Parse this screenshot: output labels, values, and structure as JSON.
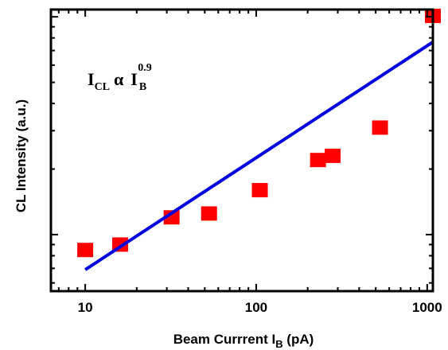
{
  "chart_data": {
    "type": "scatter",
    "xscale": "log",
    "yscale": "log",
    "xlim": [
      6.3,
      1080
    ],
    "ylim": [
      0.55,
      10.8
    ],
    "x_ticks": [
      10,
      100,
      1000
    ],
    "x_tick_labels": [
      "10",
      "100",
      "1000"
    ],
    "xlabel_main": "Beam Currrent I",
    "xlabel_sub": "B",
    "xlabel_tail": " (pA)",
    "ylabel": "CL Intensity (a.u.)",
    "annotation": {
      "i1": "I",
      "s1": "CL",
      "alpha": "α",
      "i2": "I",
      "s2": "B",
      "exp": "0.9"
    },
    "grid": false,
    "series": [
      {
        "kind": "markers",
        "marker": "square",
        "color": "#ff0000",
        "x": [
          10,
          16,
          32,
          53,
          105,
          230,
          280,
          530,
          1080
        ],
        "y": [
          0.85,
          0.9,
          1.2,
          1.25,
          1.6,
          2.2,
          2.3,
          3.1,
          10.1
        ]
      },
      {
        "kind": "fit-line",
        "color": "#0000e0",
        "x": [
          10,
          1080
        ],
        "y": [
          0.69,
          7.66
        ]
      }
    ]
  }
}
